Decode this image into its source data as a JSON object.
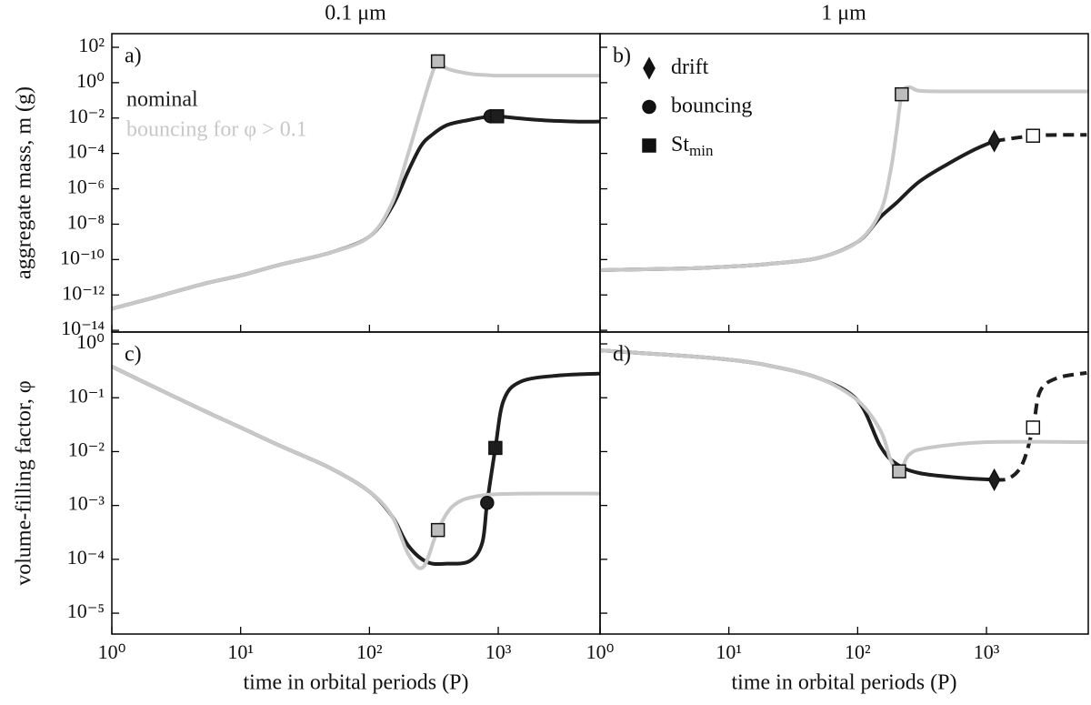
{
  "column_titles": [
    "0.1 μm",
    "1 μm"
  ],
  "chart_data": [
    {
      "type": "line",
      "title": "a)",
      "ylabel": "aggregate mass, m (g)",
      "xlog": true,
      "ylog": true,
      "xlim": [
        1,
        6170
      ],
      "ylim": [
        8e-15,
        590
      ],
      "xticks": [
        1,
        10,
        100,
        1000
      ],
      "yticks": [
        {
          "value": 1e-14,
          "label": "10⁻¹⁴"
        },
        {
          "value": 1e-12,
          "label": "10⁻¹²"
        },
        {
          "value": 1e-10,
          "label": "10⁻¹⁰"
        },
        {
          "value": 1e-08,
          "label": "10⁻⁸"
        },
        {
          "value": 1e-06,
          "label": "10⁻⁶"
        },
        {
          "value": 0.0001,
          "label": "10⁻⁴"
        },
        {
          "value": 0.01,
          "label": "10⁻²"
        },
        {
          "value": 1,
          "label": "10⁰"
        },
        {
          "value": 100,
          "label": "10²"
        }
      ],
      "legend": "upper left",
      "series": [
        {
          "name": "nominal",
          "color": "#1e1e1e",
          "x": [
            1,
            2,
            5,
            10,
            20,
            50,
            100,
            150,
            200,
            250,
            300,
            400,
            600,
            870,
            1000,
            2000,
            4000,
            6000
          ],
          "values": [
            1.66e-13,
            6.3e-13,
            4e-12,
            1.26e-11,
            5e-11,
            2.5e-10,
            2e-09,
            1e-07,
            1e-05,
            0.00025,
            0.001,
            0.004,
            0.0079,
            0.0126,
            0.0126,
            0.0079,
            0.0063,
            0.0063
          ]
        },
        {
          "name": "bouncing for φ > 0.1",
          "color": "#c8c8c8",
          "x": [
            1,
            2,
            5,
            10,
            20,
            50,
            100,
            150,
            200,
            250,
            300,
            340,
            400,
            600,
            870,
            1000,
            2000,
            4000,
            6000
          ],
          "values": [
            1.66e-13,
            6.3e-13,
            4e-12,
            1.26e-11,
            5e-11,
            2.5e-10,
            2e-09,
            1.6e-07,
            0.0001,
            0.025,
            2.0,
            16,
            6.3,
            3.2,
            2.6,
            2.5,
            2.5,
            2.5,
            2.5
          ]
        }
      ],
      "markers": [
        {
          "shape": "square",
          "x": 340,
          "y": 16,
          "fill": "#bdbdbd"
        },
        {
          "shape": "circle",
          "x": 870,
          "y": 0.0126,
          "fill": "#1e1e1e"
        },
        {
          "shape": "square",
          "x": 980,
          "y": 0.0126,
          "fill": "#1e1e1e"
        }
      ]
    },
    {
      "type": "line",
      "title": "b)",
      "xlog": true,
      "ylog": true,
      "xlim": [
        1,
        6170
      ],
      "ylim": [
        8e-15,
        590
      ],
      "xticks": [
        1,
        10,
        100,
        1000
      ],
      "yticks": [
        1e-14,
        1e-12,
        1e-10,
        1e-08,
        1e-06,
        0.0001,
        0.01,
        1,
        100
      ],
      "marker_legend": [
        {
          "shape": "diamond",
          "label": "drift"
        },
        {
          "shape": "circle",
          "label": "bouncing"
        },
        {
          "shape": "square",
          "label": "St",
          "sub": "min"
        }
      ],
      "series": [
        {
          "color": "#1e1e1e",
          "x": [
            1,
            2,
            5,
            10,
            20,
            50,
            100,
            150,
            200,
            300,
            500,
            800,
            1150,
            2300,
            4000,
            6000
          ],
          "values": [
            2.5e-11,
            2.8e-11,
            3.2e-11,
            4e-11,
            5.6e-11,
            1.26e-10,
            1e-09,
            2.5e-08,
            1.6e-07,
            2.5e-06,
            2.5e-05,
            0.00016,
            0.0005,
            0.001,
            0.00112,
            0.00112
          ]
        },
        {
          "color": "#c8c8c8",
          "x": [
            1,
            2,
            5,
            10,
            20,
            50,
            100,
            150,
            180,
            200,
            220,
            250,
            300,
            500,
            1000,
            2000,
            4000,
            6000
          ],
          "values": [
            2.5e-11,
            2.8e-11,
            3.2e-11,
            4e-11,
            5.6e-11,
            1.26e-10,
            1e-09,
            5e-08,
            1e-05,
            0.0016,
            0.22,
            0.56,
            0.35,
            0.32,
            0.32,
            0.32,
            0.32,
            0.32
          ]
        }
      ],
      "markers": [
        {
          "shape": "square",
          "x": 220,
          "y": 0.22,
          "fill": "#bdbdbd"
        },
        {
          "shape": "diamond",
          "x": 1150,
          "y": 0.0005,
          "fill": "#1e1e1e"
        },
        {
          "shape": "square",
          "x": 2300,
          "y": 0.001,
          "fill": "#ffffff"
        }
      ]
    },
    {
      "type": "line",
      "title": "c)",
      "ylabel": "volume-filling factor, φ",
      "xlabel": "time in orbital periods (P)",
      "xlog": true,
      "ylog": true,
      "xlim": [
        1,
        6170
      ],
      "ylim": [
        4.1e-06,
        1.66
      ],
      "xticks": [
        {
          "value": 1,
          "label": "10⁰"
        },
        {
          "value": 10,
          "label": "10¹"
        },
        {
          "value": 100,
          "label": "10²"
        },
        {
          "value": 1000,
          "label": "10³"
        }
      ],
      "yticks": [
        {
          "value": 1e-05,
          "label": "10⁻⁵"
        },
        {
          "value": 0.0001,
          "label": "10⁻⁴"
        },
        {
          "value": 0.001,
          "label": "10⁻³"
        },
        {
          "value": 0.01,
          "label": "10⁻²"
        },
        {
          "value": 0.1,
          "label": "10⁻¹"
        },
        {
          "value": 1,
          "label": "10⁰"
        }
      ],
      "series": [
        {
          "color": "#1e1e1e",
          "x": [
            1,
            2,
            5,
            10,
            20,
            50,
            100,
            150,
            200,
            280,
            400,
            600,
            750,
            820,
            950,
            1100,
            1500,
            3000,
            6000
          ],
          "values": [
            0.38,
            0.17,
            0.06,
            0.028,
            0.013,
            0.0049,
            0.0018,
            0.00063,
            0.00018,
            8.9e-05,
            8.3e-05,
            9.3e-05,
            0.0002,
            0.00112,
            0.0117,
            0.089,
            0.2,
            0.26,
            0.28
          ]
        },
        {
          "color": "#c8c8c8",
          "x": [
            1,
            2,
            5,
            10,
            20,
            50,
            100,
            150,
            200,
            260,
            340,
            450,
            700,
            1500,
            6000
          ],
          "values": [
            0.38,
            0.17,
            0.06,
            0.028,
            0.013,
            0.0049,
            0.0018,
            0.00063,
            0.000126,
            7.1e-05,
            0.00035,
            0.001,
            0.0015,
            0.00166,
            0.00166
          ]
        }
      ],
      "markers": [
        {
          "shape": "square",
          "x": 340,
          "y": 0.00035,
          "fill": "#bdbdbd"
        },
        {
          "shape": "circle",
          "x": 820,
          "y": 0.00112,
          "fill": "#1e1e1e"
        },
        {
          "shape": "square",
          "x": 950,
          "y": 0.0117,
          "fill": "#1e1e1e"
        }
      ]
    },
    {
      "type": "line",
      "title": "d)",
      "xlabel": "time in orbital periods (P)",
      "xlog": true,
      "ylog": true,
      "xlim": [
        1,
        6170
      ],
      "ylim": [
        4.1e-06,
        1.66
      ],
      "xticks": [
        {
          "value": 1,
          "label": "10⁰"
        },
        {
          "value": 10,
          "label": "10¹"
        },
        {
          "value": 100,
          "label": "10²"
        },
        {
          "value": 1000,
          "label": "10³"
        }
      ],
      "yticks": [
        1e-05,
        0.0001,
        0.001,
        0.01,
        0.1,
        1
      ],
      "series": [
        {
          "color": "#1e1e1e",
          "x": [
            1,
            2,
            5,
            10,
            20,
            50,
            100,
            150,
            200,
            300,
            600,
            1150,
            1500,
            1900,
            2300,
            2600,
            3500,
            6000
          ],
          "values": [
            0.76,
            0.68,
            0.59,
            0.51,
            0.4,
            0.23,
            0.089,
            0.0126,
            0.0059,
            0.004,
            0.0033,
            0.003,
            0.0032,
            0.0059,
            0.028,
            0.13,
            0.23,
            0.29
          ]
        },
        {
          "color": "#c8c8c8",
          "x": [
            1,
            2,
            5,
            10,
            20,
            50,
            100,
            150,
            180,
            210,
            250,
            350,
            1000,
            6000
          ],
          "values": [
            0.76,
            0.68,
            0.59,
            0.51,
            0.4,
            0.23,
            0.089,
            0.025,
            0.0071,
            0.004,
            0.0087,
            0.0117,
            0.015,
            0.015
          ]
        }
      ],
      "markers": [
        {
          "shape": "square",
          "x": 210,
          "y": 0.0043,
          "fill": "#bdbdbd"
        },
        {
          "shape": "diamond",
          "x": 1150,
          "y": 0.003,
          "fill": "#1e1e1e"
        },
        {
          "shape": "square",
          "x": 2300,
          "y": 0.028,
          "fill": "#ffffff"
        }
      ]
    }
  ]
}
